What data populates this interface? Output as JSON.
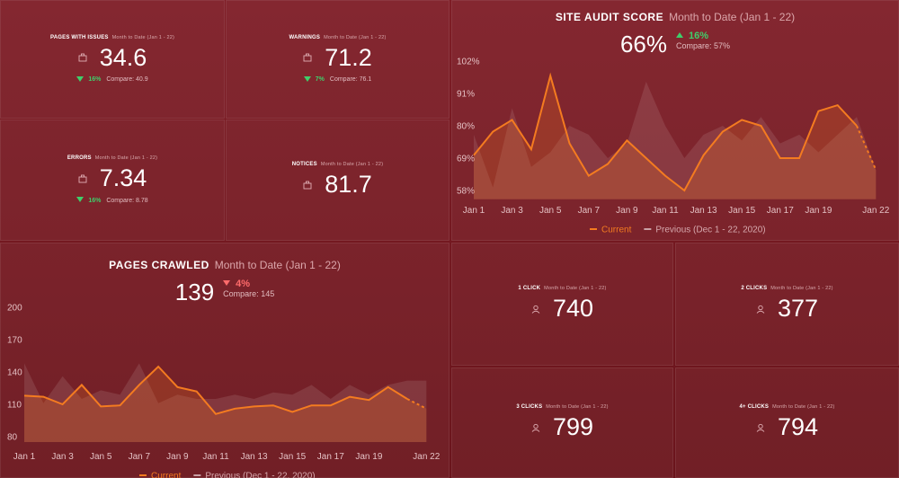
{
  "tiles": [
    {
      "label": "PAGES WITH ISSUES",
      "range": "Month to Date (Jan 1 - 22)",
      "value": "34.6",
      "change": "16%",
      "compare": "Compare: 40.9"
    },
    {
      "label": "WARNINGS",
      "range": "Month to Date (Jan 1 - 22)",
      "value": "71.2",
      "change": "7%",
      "compare": "Compare: 76.1"
    },
    {
      "label": "ERRORS",
      "range": "Month to Date (Jan 1 - 22)",
      "value": "7.34",
      "change": "16%",
      "compare": "Compare: 8.78"
    },
    {
      "label": "NOTICES",
      "range": "Month to Date (Jan 1 - 22)",
      "value": "81.7"
    },
    {
      "label": "1 CLICK",
      "range": "Month to Date (Jan 1 - 22)",
      "value": "740"
    },
    {
      "label": "2 CLICKS",
      "range": "Month to Date (Jan 1 - 22)",
      "value": "377"
    },
    {
      "label": "3 CLICKS",
      "range": "Month to Date (Jan 1 - 22)",
      "value": "799"
    },
    {
      "label": "4+ CLICKS",
      "range": "Month to Date (Jan 1 - 22)",
      "value": "794"
    }
  ],
  "chart_data": [
    {
      "type": "line",
      "title": "SITE AUDIT SCORE",
      "subtitle": "Month to Date (Jan 1 - 22)",
      "value": "66%",
      "change": "16%",
      "compare": "Compare: 57%",
      "categories": [
        "Jan 1",
        null,
        "Jan 3",
        null,
        "Jan 5",
        null,
        "Jan 7",
        null,
        "Jan 9",
        null,
        "Jan 11",
        null,
        "Jan 13",
        null,
        "Jan 15",
        null,
        "Jan 17",
        null,
        "Jan 19",
        null,
        null,
        "Jan 22"
      ],
      "series": [
        {
          "name": "Current",
          "color": "#f47b20",
          "values": [
            70,
            78,
            82,
            72,
            97,
            74,
            63,
            67,
            75,
            69,
            63,
            58,
            70,
            78,
            82,
            80,
            69,
            69,
            85,
            87,
            80,
            65
          ]
        },
        {
          "name": "Previous (Dec 1 - 22, 2020)",
          "color": "#c9a0a5",
          "values": [
            77,
            59,
            86,
            66,
            71,
            80,
            77,
            69,
            74,
            95,
            80,
            69,
            77,
            80,
            75,
            83,
            74,
            77,
            71,
            77,
            83,
            65
          ]
        }
      ],
      "ylim": [
        55,
        105
      ],
      "yticks": [
        {
          "value": 58,
          "label": "58%"
        },
        {
          "value": 69,
          "label": "69%"
        },
        {
          "value": 80,
          "label": "80%"
        },
        {
          "value": 91,
          "label": "91%"
        },
        {
          "value": 102,
          "label": "102%"
        }
      ],
      "legend": "bottom"
    },
    {
      "type": "line",
      "title": "PAGES CRAWLED",
      "subtitle": "Month to Date (Jan 1 - 22)",
      "value": "139",
      "change": "4%",
      "compare": "Compare: 145",
      "categories": [
        "Jan 1",
        null,
        "Jan 3",
        null,
        "Jan 5",
        null,
        "Jan 7",
        null,
        "Jan 9",
        null,
        "Jan 11",
        null,
        "Jan 13",
        null,
        "Jan 15",
        null,
        "Jan 17",
        null,
        "Jan 19",
        null,
        null,
        "Jan 22"
      ],
      "series": [
        {
          "name": "Current",
          "color": "#f47b20",
          "values": [
            118,
            117,
            110,
            128,
            108,
            109,
            128,
            145,
            126,
            122,
            101,
            106,
            108,
            109,
            103,
            109,
            109,
            117,
            114,
            126,
            115,
            106
          ]
        },
        {
          "name": "Previous (Dec 1 - 22, 2020)",
          "color": "#c9a0a5",
          "values": [
            148,
            111,
            136,
            115,
            123,
            119,
            148,
            111,
            119,
            115,
            115,
            119,
            115,
            121,
            119,
            128,
            115,
            128,
            119,
            128,
            132,
            132
          ]
        }
      ],
      "ylim": [
        75,
        205
      ],
      "yticks": [
        80,
        110,
        140,
        170,
        200
      ],
      "legend": "bottom"
    }
  ]
}
